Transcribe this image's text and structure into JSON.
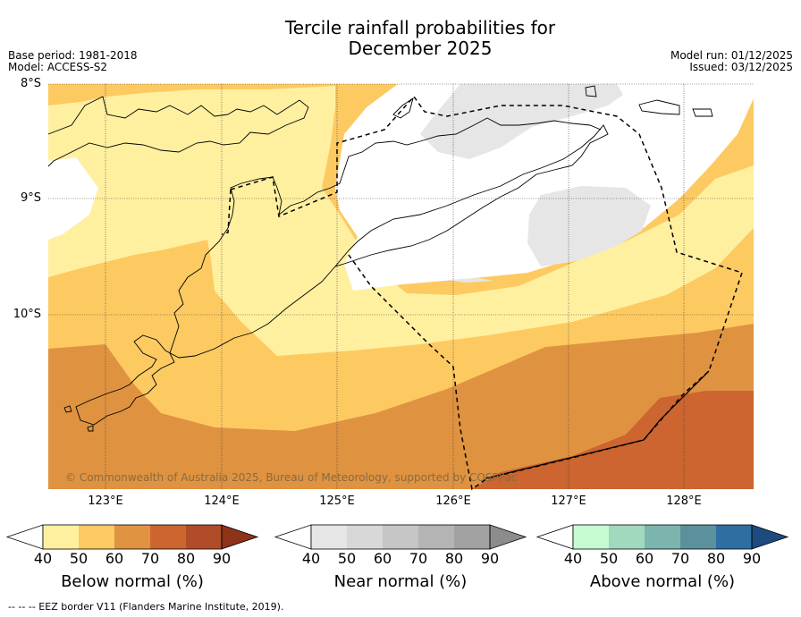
{
  "title_line1": "Tercile rainfall probabilities for",
  "title_line2": "December 2025",
  "base_period": "Base period: 1981-2018",
  "model": "Model: ACCESS-S2",
  "model_run": "Model run: 01/12/2025",
  "issued": "Issued: 03/12/2025",
  "copyright": "© Commonwealth of Australia 2025, Bureau of Meteorology, supported by COSPPac",
  "footnote": "--  --  -- EEZ border V11 (Flanders Marine Institute, 2019).",
  "map": {
    "region": "Timor (West Timor, Timor-Leste, Savu Sea, Timor Sea)",
    "lat_labels": [
      "8°S",
      "9°S",
      "10°S"
    ],
    "lon_labels": [
      "123°E",
      "124°E",
      "125°E",
      "126°E",
      "127°E",
      "128°E"
    ],
    "lat_range": [
      -11.5,
      -8.0
    ],
    "lon_range": [
      122.5,
      128.6
    ]
  },
  "colorbars": [
    {
      "label": "Below normal (%)",
      "ticks": [
        "40",
        "50",
        "60",
        "70",
        "80",
        "90"
      ],
      "colors": [
        "#ffffff",
        "#fff0a0",
        "#fdca62",
        "#df9341",
        "#cc6530",
        "#b04d28",
        "#8e3218"
      ]
    },
    {
      "label": "Near normal (%)",
      "ticks": [
        "40",
        "50",
        "60",
        "70",
        "80",
        "90"
      ],
      "colors": [
        "#ffffff",
        "#e6e6e6",
        "#d8d8d8",
        "#c6c6c6",
        "#b4b4b4",
        "#a2a2a2",
        "#8c8c8c"
      ]
    },
    {
      "label": "Above normal (%)",
      "ticks": [
        "40",
        "50",
        "60",
        "70",
        "80",
        "90"
      ],
      "colors": [
        "#ffffff",
        "#c7fcd2",
        "#a0d9bd",
        "#7cb5ae",
        "#5a919c",
        "#2e6ea0",
        "#1d4b80"
      ]
    }
  ]
}
